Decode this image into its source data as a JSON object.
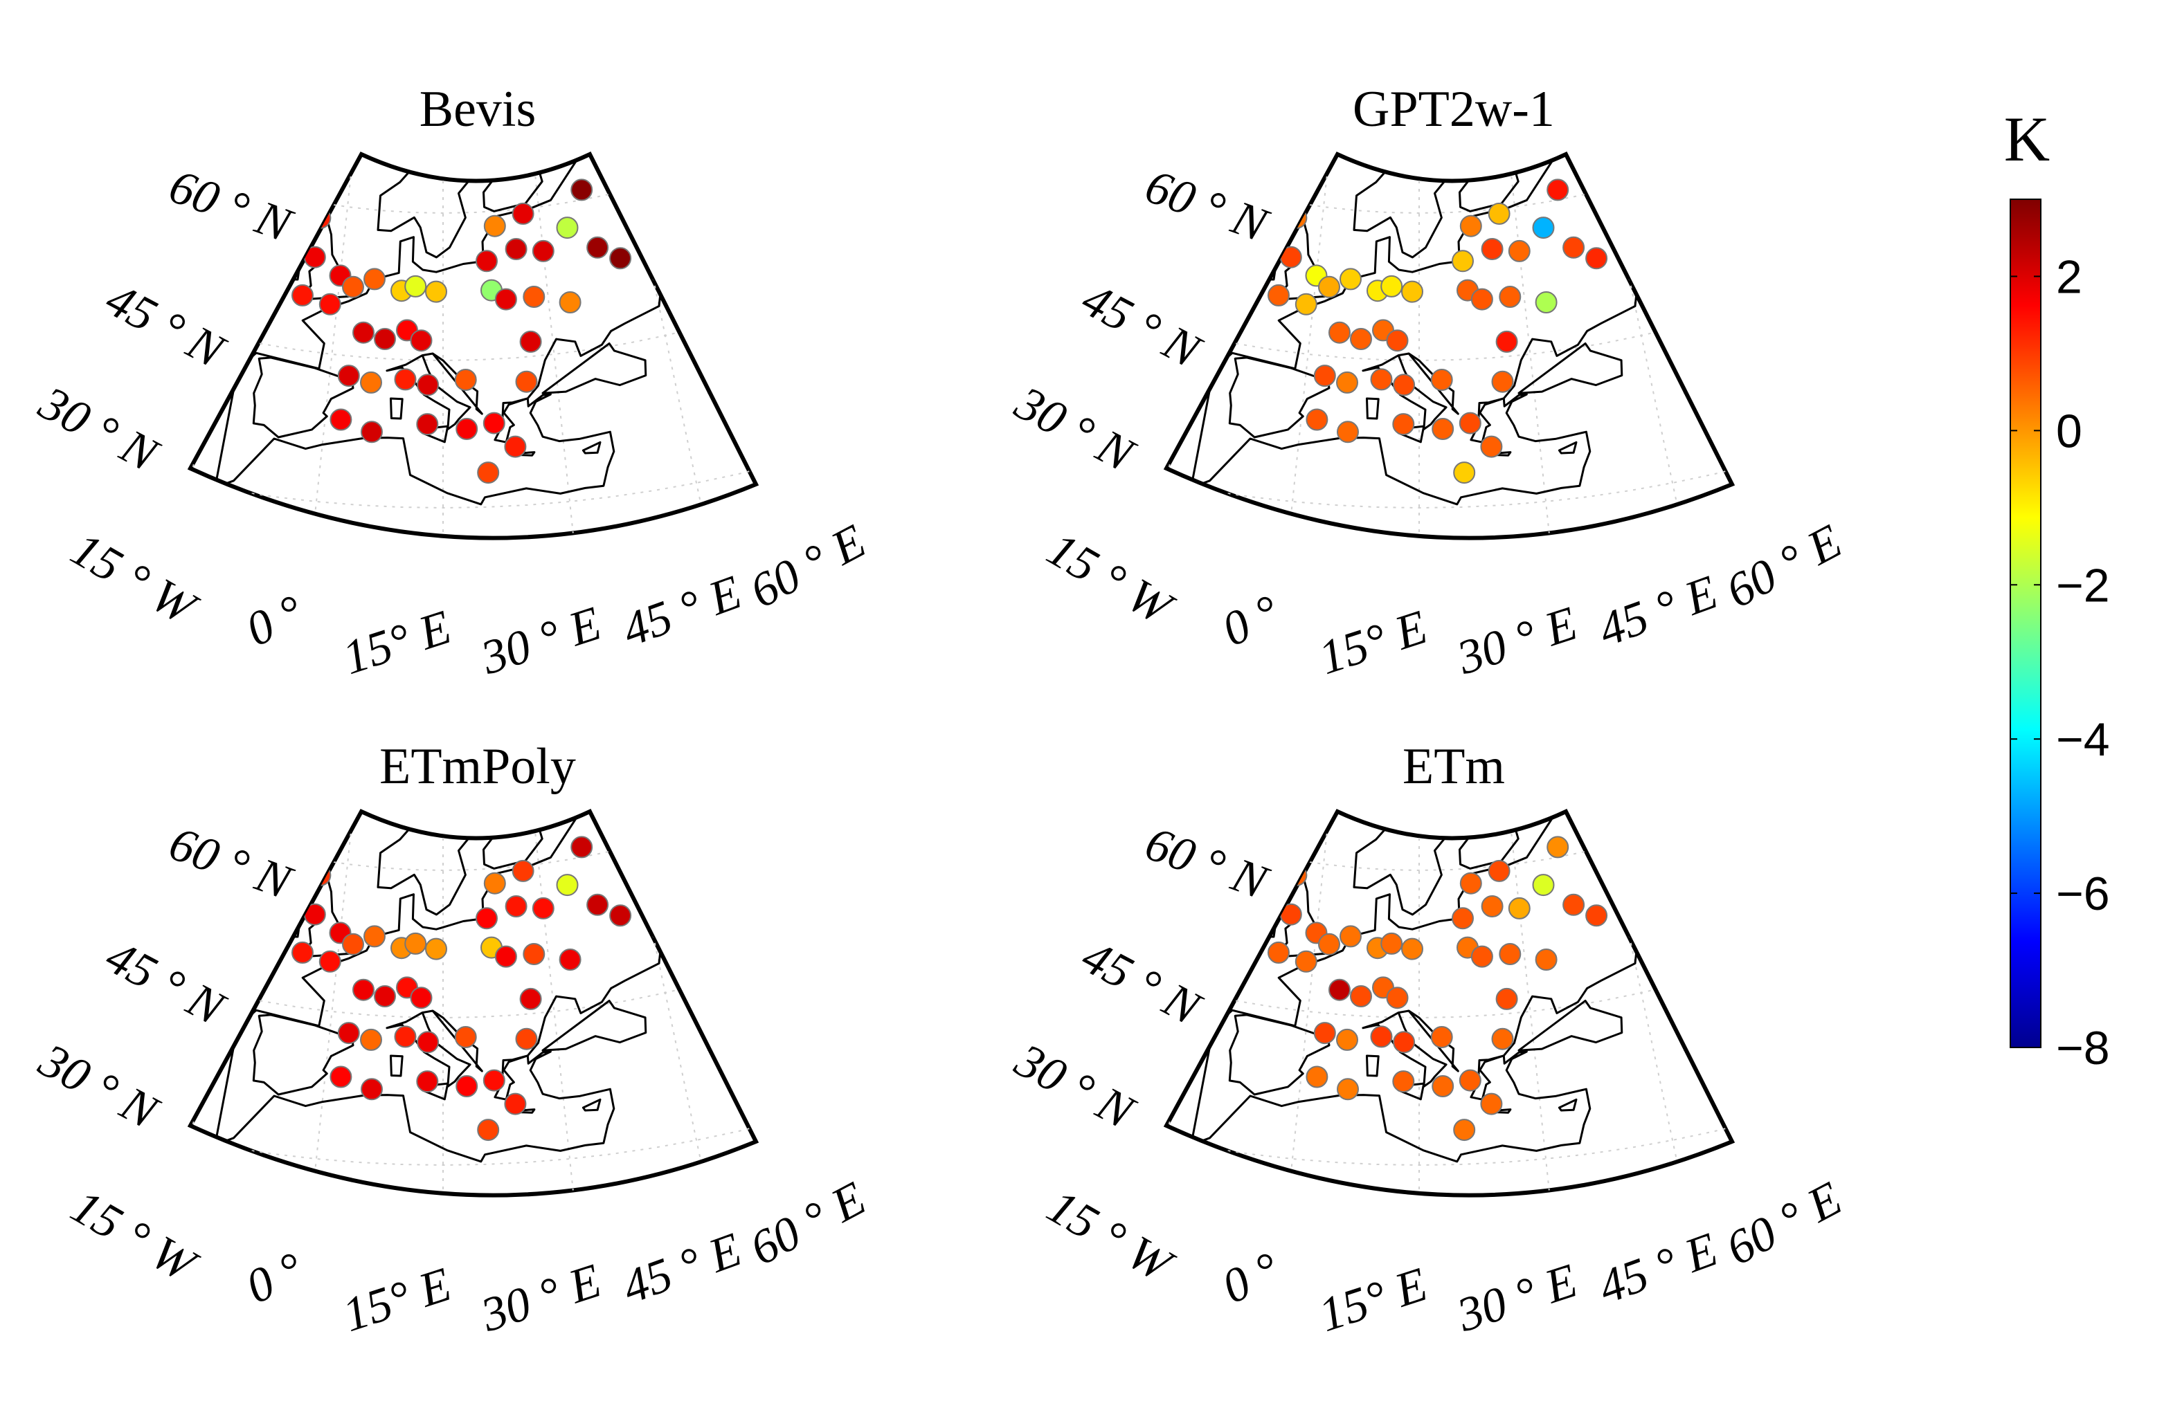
{
  "figure": {
    "colorbar": {
      "unit": "K",
      "min": -8,
      "max": 3,
      "ticks": [
        2,
        0,
        -2,
        -4,
        -6,
        -8
      ],
      "tick_labels": [
        "2",
        "0",
        "−2",
        "−4",
        "−6",
        "−8"
      ],
      "colormap": "jet"
    },
    "map": {
      "lat_labels": [
        "60 ° N",
        "45 ° N",
        "30 ° N"
      ],
      "lon_labels": [
        "15 ° W",
        "0 °",
        "15° E",
        "30 ° E",
        "45 ° E",
        "60 ° E"
      ]
    },
    "panels": [
      {
        "title": "Bevis",
        "stations": [
          {
            "lon": -8,
            "lat": 63.5,
            "v": 1.6
          },
          {
            "lon": -4,
            "lat": 58.5,
            "v": 1.3
          },
          {
            "lon": -4,
            "lat": 54.5,
            "v": 1.8
          },
          {
            "lon": 0,
            "lat": 53,
            "v": 1.8
          },
          {
            "lon": -5,
            "lat": 50.5,
            "v": 1.4
          },
          {
            "lon": -1,
            "lat": 50,
            "v": 1.5
          },
          {
            "lon": 2,
            "lat": 52,
            "v": 0.7
          },
          {
            "lon": 5,
            "lat": 53,
            "v": 0.6
          },
          {
            "lon": 9,
            "lat": 52,
            "v": -0.6
          },
          {
            "lon": 11,
            "lat": 52.5,
            "v": -1.4
          },
          {
            "lon": 14,
            "lat": 52,
            "v": -0.5
          },
          {
            "lon": 4,
            "lat": 47.5,
            "v": 2.0
          },
          {
            "lon": 7,
            "lat": 47,
            "v": 2.1
          },
          {
            "lon": 10,
            "lat": 48,
            "v": 1.6
          },
          {
            "lon": 12,
            "lat": 47,
            "v": 1.9
          },
          {
            "lon": 2.5,
            "lat": 43,
            "v": 2.0
          },
          {
            "lon": 5.5,
            "lat": 42.5,
            "v": 0.4
          },
          {
            "lon": 10,
            "lat": 43,
            "v": 1.3
          },
          {
            "lon": 13,
            "lat": 42.5,
            "v": 2.0
          },
          {
            "lon": 18,
            "lat": 43,
            "v": 0.7
          },
          {
            "lon": 2,
            "lat": 38.5,
            "v": 1.7
          },
          {
            "lon": 6,
            "lat": 37.5,
            "v": 2.1
          },
          {
            "lon": 13,
            "lat": 38.5,
            "v": 2.0
          },
          {
            "lon": 18,
            "lat": 38,
            "v": 1.7
          },
          {
            "lon": 21.5,
            "lat": 38.5,
            "v": 1.6
          },
          {
            "lon": 24,
            "lat": 36,
            "v": 1.3
          },
          {
            "lon": 20.5,
            "lat": 33.5,
            "v": 0.9
          },
          {
            "lon": 23,
            "lat": 58.5,
            "v": 0.2
          },
          {
            "lon": 27.5,
            "lat": 59.5,
            "v": 1.9
          },
          {
            "lon": 37,
            "lat": 61,
            "v": 2.9
          },
          {
            "lon": 21.5,
            "lat": 55,
            "v": 1.9
          },
          {
            "lon": 26,
            "lat": 56,
            "v": 2.1
          },
          {
            "lon": 30,
            "lat": 55.5,
            "v": 2.0
          },
          {
            "lon": 34,
            "lat": 57.5,
            "v": -1.8
          },
          {
            "lon": 38,
            "lat": 55,
            "v": 2.7
          },
          {
            "lon": 41,
            "lat": 53.5,
            "v": 2.9
          },
          {
            "lon": 22,
            "lat": 52,
            "v": -2.3
          },
          {
            "lon": 24,
            "lat": 51,
            "v": 1.9
          },
          {
            "lon": 28,
            "lat": 51,
            "v": 0.7
          },
          {
            "lon": 33,
            "lat": 50,
            "v": 0.2
          },
          {
            "lon": 27,
            "lat": 46.5,
            "v": 2.0
          },
          {
            "lon": 26,
            "lat": 42.5,
            "v": 0.8
          }
        ]
      },
      {
        "title": "GPT2w-1",
        "stations": [
          {
            "lon": -8,
            "lat": 63.5,
            "v": 0.5
          },
          {
            "lon": -4,
            "lat": 58.5,
            "v": 0.4
          },
          {
            "lon": -4,
            "lat": 54.5,
            "v": 0.9
          },
          {
            "lon": 0,
            "lat": 53,
            "v": -1.2
          },
          {
            "lon": -5,
            "lat": 50.5,
            "v": 0.6
          },
          {
            "lon": -1,
            "lat": 50,
            "v": -0.4
          },
          {
            "lon": 2,
            "lat": 52,
            "v": -0.2
          },
          {
            "lon": 5,
            "lat": 53,
            "v": -0.6
          },
          {
            "lon": 9,
            "lat": 52,
            "v": -0.9
          },
          {
            "lon": 11,
            "lat": 52.5,
            "v": -0.9
          },
          {
            "lon": 14,
            "lat": 52,
            "v": -0.5
          },
          {
            "lon": 4,
            "lat": 47.5,
            "v": 0.6
          },
          {
            "lon": 7,
            "lat": 47,
            "v": 0.6
          },
          {
            "lon": 10,
            "lat": 48,
            "v": 0.5
          },
          {
            "lon": 12,
            "lat": 47,
            "v": 0.8
          },
          {
            "lon": 2.5,
            "lat": 43,
            "v": 0.8
          },
          {
            "lon": 5.5,
            "lat": 42.5,
            "v": 0.3
          },
          {
            "lon": 10,
            "lat": 43,
            "v": 0.7
          },
          {
            "lon": 13,
            "lat": 42.5,
            "v": 0.8
          },
          {
            "lon": 18,
            "lat": 43,
            "v": 0.6
          },
          {
            "lon": 2,
            "lat": 38.5,
            "v": 0.7
          },
          {
            "lon": 6,
            "lat": 37.5,
            "v": 0.5
          },
          {
            "lon": 13,
            "lat": 38.5,
            "v": 0.7
          },
          {
            "lon": 18,
            "lat": 38,
            "v": 0.6
          },
          {
            "lon": 21.5,
            "lat": 38.5,
            "v": 0.8
          },
          {
            "lon": 24,
            "lat": 36,
            "v": 0.6
          },
          {
            "lon": 20.5,
            "lat": 33.5,
            "v": -0.6
          },
          {
            "lon": 23,
            "lat": 58.5,
            "v": 0.3
          },
          {
            "lon": 27.5,
            "lat": 59.5,
            "v": -0.4
          },
          {
            "lon": 37,
            "lat": 61,
            "v": 1.4
          },
          {
            "lon": 21.5,
            "lat": 55,
            "v": -0.5
          },
          {
            "lon": 26,
            "lat": 56,
            "v": 1.0
          },
          {
            "lon": 30,
            "lat": 55.5,
            "v": 0.5
          },
          {
            "lon": 34,
            "lat": 57.5,
            "v": -4.7
          },
          {
            "lon": 38,
            "lat": 55,
            "v": 0.9
          },
          {
            "lon": 41,
            "lat": 53.5,
            "v": 1.2
          },
          {
            "lon": 22,
            "lat": 52,
            "v": 0.6
          },
          {
            "lon": 24,
            "lat": 51,
            "v": 0.7
          },
          {
            "lon": 28,
            "lat": 51,
            "v": 0.6
          },
          {
            "lon": 33,
            "lat": 50,
            "v": -2.0
          },
          {
            "lon": 27,
            "lat": 46.5,
            "v": 1.4
          },
          {
            "lon": 26,
            "lat": 42.5,
            "v": 0.6
          }
        ]
      },
      {
        "title": "ETmPoly",
        "stations": [
          {
            "lon": -8,
            "lat": 63.5,
            "v": 1.6
          },
          {
            "lon": -4,
            "lat": 58.5,
            "v": 1.1
          },
          {
            "lon": -4,
            "lat": 54.5,
            "v": 1.8
          },
          {
            "lon": 0,
            "lat": 53,
            "v": 1.8
          },
          {
            "lon": -5,
            "lat": 50.5,
            "v": 1.4
          },
          {
            "lon": -1,
            "lat": 50,
            "v": 1.5
          },
          {
            "lon": 2,
            "lat": 52,
            "v": 0.8
          },
          {
            "lon": 5,
            "lat": 53,
            "v": 0.5
          },
          {
            "lon": 9,
            "lat": 52,
            "v": 0.1
          },
          {
            "lon": 11,
            "lat": 52.5,
            "v": 0.2
          },
          {
            "lon": 14,
            "lat": 52,
            "v": 0.0
          },
          {
            "lon": 4,
            "lat": 47.5,
            "v": 1.8
          },
          {
            "lon": 7,
            "lat": 47,
            "v": 1.9
          },
          {
            "lon": 10,
            "lat": 48,
            "v": 1.5
          },
          {
            "lon": 12,
            "lat": 47,
            "v": 1.7
          },
          {
            "lon": 2.5,
            "lat": 43,
            "v": 1.9
          },
          {
            "lon": 5.5,
            "lat": 42.5,
            "v": 0.5
          },
          {
            "lon": 10,
            "lat": 43,
            "v": 1.3
          },
          {
            "lon": 13,
            "lat": 42.5,
            "v": 1.8
          },
          {
            "lon": 18,
            "lat": 43,
            "v": 0.8
          },
          {
            "lon": 2,
            "lat": 38.5,
            "v": 1.6
          },
          {
            "lon": 6,
            "lat": 37.5,
            "v": 1.9
          },
          {
            "lon": 13,
            "lat": 38.5,
            "v": 1.8
          },
          {
            "lon": 18,
            "lat": 38,
            "v": 1.6
          },
          {
            "lon": 21.5,
            "lat": 38.5,
            "v": 1.5
          },
          {
            "lon": 24,
            "lat": 36,
            "v": 1.3
          },
          {
            "lon": 20.5,
            "lat": 33.5,
            "v": 0.9
          },
          {
            "lon": 23,
            "lat": 58.5,
            "v": 0.3
          },
          {
            "lon": 27.5,
            "lat": 59.5,
            "v": 1.0
          },
          {
            "lon": 37,
            "lat": 61,
            "v": 2.2
          },
          {
            "lon": 21.5,
            "lat": 55,
            "v": 1.6
          },
          {
            "lon": 26,
            "lat": 56,
            "v": 1.4
          },
          {
            "lon": 30,
            "lat": 55.5,
            "v": 1.5
          },
          {
            "lon": 34,
            "lat": 57.5,
            "v": -1.4
          },
          {
            "lon": 38,
            "lat": 55,
            "v": 2.2
          },
          {
            "lon": 41,
            "lat": 53.5,
            "v": 2.2
          },
          {
            "lon": 22,
            "lat": 52,
            "v": -0.5
          },
          {
            "lon": 24,
            "lat": 51,
            "v": 1.7
          },
          {
            "lon": 28,
            "lat": 51,
            "v": 0.9
          },
          {
            "lon": 33,
            "lat": 50,
            "v": 1.8
          },
          {
            "lon": 27,
            "lat": 46.5,
            "v": 1.9
          },
          {
            "lon": 26,
            "lat": 42.5,
            "v": 0.9
          }
        ]
      },
      {
        "title": "ETm",
        "stations": [
          {
            "lon": -8,
            "lat": 63.5,
            "v": 0.4
          },
          {
            "lon": -4,
            "lat": 58.5,
            "v": 0.6
          },
          {
            "lon": -4,
            "lat": 54.5,
            "v": 0.9
          },
          {
            "lon": 0,
            "lat": 53,
            "v": 0.7
          },
          {
            "lon": -5,
            "lat": 50.5,
            "v": 0.6
          },
          {
            "lon": -1,
            "lat": 50,
            "v": 0.5
          },
          {
            "lon": 2,
            "lat": 52,
            "v": 0.5
          },
          {
            "lon": 5,
            "lat": 53,
            "v": 0.4
          },
          {
            "lon": 9,
            "lat": 52,
            "v": 0.2
          },
          {
            "lon": 11,
            "lat": 52.5,
            "v": 0.5
          },
          {
            "lon": 14,
            "lat": 52,
            "v": 0.3
          },
          {
            "lon": 4,
            "lat": 47.5,
            "v": 2.3
          },
          {
            "lon": 7,
            "lat": 47,
            "v": 0.8
          },
          {
            "lon": 10,
            "lat": 48,
            "v": 0.6
          },
          {
            "lon": 12,
            "lat": 47,
            "v": 0.7
          },
          {
            "lon": 2.5,
            "lat": 43,
            "v": 0.9
          },
          {
            "lon": 5.5,
            "lat": 42.5,
            "v": 0.3
          },
          {
            "lon": 10,
            "lat": 43,
            "v": 1.0
          },
          {
            "lon": 13,
            "lat": 42.5,
            "v": 1.0
          },
          {
            "lon": 18,
            "lat": 43,
            "v": 0.6
          },
          {
            "lon": 2,
            "lat": 38.5,
            "v": 0.4
          },
          {
            "lon": 6,
            "lat": 37.5,
            "v": 0.3
          },
          {
            "lon": 13,
            "lat": 38.5,
            "v": 0.6
          },
          {
            "lon": 18,
            "lat": 38,
            "v": 0.5
          },
          {
            "lon": 21.5,
            "lat": 38.5,
            "v": 0.6
          },
          {
            "lon": 24,
            "lat": 36,
            "v": 0.5
          },
          {
            "lon": 20.5,
            "lat": 33.5,
            "v": 0.4
          },
          {
            "lon": 23,
            "lat": 58.5,
            "v": 0.6
          },
          {
            "lon": 27.5,
            "lat": 59.5,
            "v": 0.8
          },
          {
            "lon": 37,
            "lat": 61,
            "v": 0.1
          },
          {
            "lon": 21.5,
            "lat": 55,
            "v": 0.7
          },
          {
            "lon": 26,
            "lat": 56,
            "v": 0.5
          },
          {
            "lon": 30,
            "lat": 55.5,
            "v": -0.2
          },
          {
            "lon": 34,
            "lat": 57.5,
            "v": -1.5
          },
          {
            "lon": 38,
            "lat": 55,
            "v": 0.8
          },
          {
            "lon": 41,
            "lat": 53.5,
            "v": 0.9
          },
          {
            "lon": 22,
            "lat": 52,
            "v": 0.4
          },
          {
            "lon": 24,
            "lat": 51,
            "v": 0.7
          },
          {
            "lon": 28,
            "lat": 51,
            "v": 0.6
          },
          {
            "lon": 33,
            "lat": 50,
            "v": 0.5
          },
          {
            "lon": 27,
            "lat": 46.5,
            "v": 0.8
          },
          {
            "lon": 26,
            "lat": 42.5,
            "v": 0.5
          }
        ]
      }
    ]
  }
}
